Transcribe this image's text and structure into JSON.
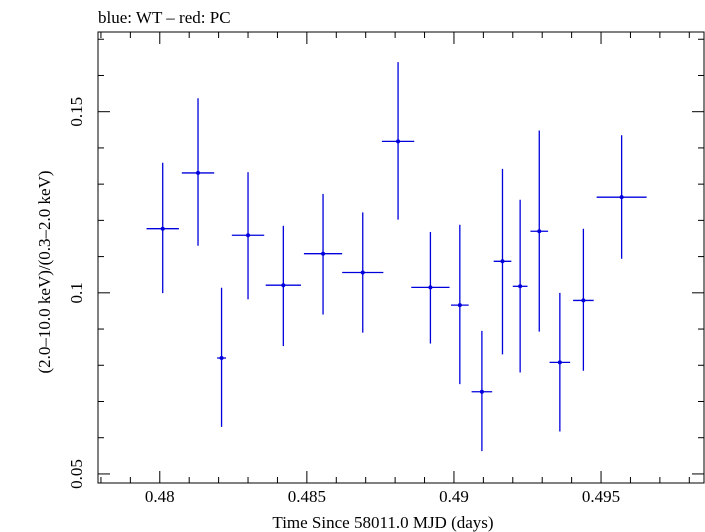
{
  "chart_data": {
    "type": "scatter",
    "title": "blue: WT – red: PC",
    "xlabel": "Time Since 58011.0 MJD (days)",
    "ylabel": "(2.0–10.0 keV)/(0.3–2.0 keV)",
    "xlim": [
      0.4779,
      0.4985
    ],
    "ylim": [
      0.0475,
      0.172
    ],
    "x_ticks": [
      {
        "value": 0.48,
        "label": "0.48"
      },
      {
        "value": 0.485,
        "label": "0.485"
      },
      {
        "value": 0.49,
        "label": "0.49"
      },
      {
        "value": 0.495,
        "label": "0.495"
      }
    ],
    "y_ticks": [
      {
        "value": 0.05,
        "label": "0.05"
      },
      {
        "value": 0.1,
        "label": "0.1"
      },
      {
        "value": 0.15,
        "label": "0.15"
      }
    ],
    "grid": false,
    "series": [
      {
        "name": "WT",
        "color": "#0000dd",
        "points": [
          {
            "x": 0.4801,
            "xerr": 0.00055,
            "y": 0.1177,
            "ylo": 0.0999,
            "yhi": 0.1359
          },
          {
            "x": 0.4813,
            "xerr": 0.00055,
            "y": 0.1331,
            "ylo": 0.113,
            "yhi": 0.1537
          },
          {
            "x": 0.4821,
            "xerr": 0.00015,
            "y": 0.082,
            "ylo": 0.063,
            "yhi": 0.1014
          },
          {
            "x": 0.483,
            "xerr": 0.00055,
            "y": 0.1159,
            "ylo": 0.0982,
            "yhi": 0.1333
          },
          {
            "x": 0.4842,
            "xerr": 0.0006,
            "y": 0.1021,
            "ylo": 0.0853,
            "yhi": 0.1185
          },
          {
            "x": 0.48555,
            "xerr": 0.00065,
            "y": 0.1108,
            "ylo": 0.094,
            "yhi": 0.1273
          },
          {
            "x": 0.4869,
            "xerr": 0.0007,
            "y": 0.1056,
            "ylo": 0.089,
            "yhi": 0.1222
          },
          {
            "x": 0.4881,
            "xerr": 0.00055,
            "y": 0.1418,
            "ylo": 0.1202,
            "yhi": 0.1637
          },
          {
            "x": 0.4892,
            "xerr": 0.00065,
            "y": 0.1015,
            "ylo": 0.086,
            "yhi": 0.1168
          },
          {
            "x": 0.4902,
            "xerr": 0.0003,
            "y": 0.0966,
            "ylo": 0.0748,
            "yhi": 0.1188
          },
          {
            "x": 0.49095,
            "xerr": 0.00035,
            "y": 0.0727,
            "ylo": 0.0563,
            "yhi": 0.0895
          },
          {
            "x": 0.49165,
            "xerr": 0.0003,
            "y": 0.1087,
            "ylo": 0.083,
            "yhi": 0.1342
          },
          {
            "x": 0.49225,
            "xerr": 0.00025,
            "y": 0.1018,
            "ylo": 0.078,
            "yhi": 0.1257
          },
          {
            "x": 0.4929,
            "xerr": 0.0003,
            "y": 0.117,
            "ylo": 0.0893,
            "yhi": 0.1448
          },
          {
            "x": 0.4936,
            "xerr": 0.00035,
            "y": 0.0808,
            "ylo": 0.0617,
            "yhi": 0.1
          },
          {
            "x": 0.4944,
            "xerr": 0.00035,
            "y": 0.0979,
            "ylo": 0.0785,
            "yhi": 0.1177
          },
          {
            "x": 0.4957,
            "xerr": 0.00085,
            "y": 0.1264,
            "ylo": 0.1094,
            "yhi": 0.1435
          }
        ]
      }
    ]
  }
}
